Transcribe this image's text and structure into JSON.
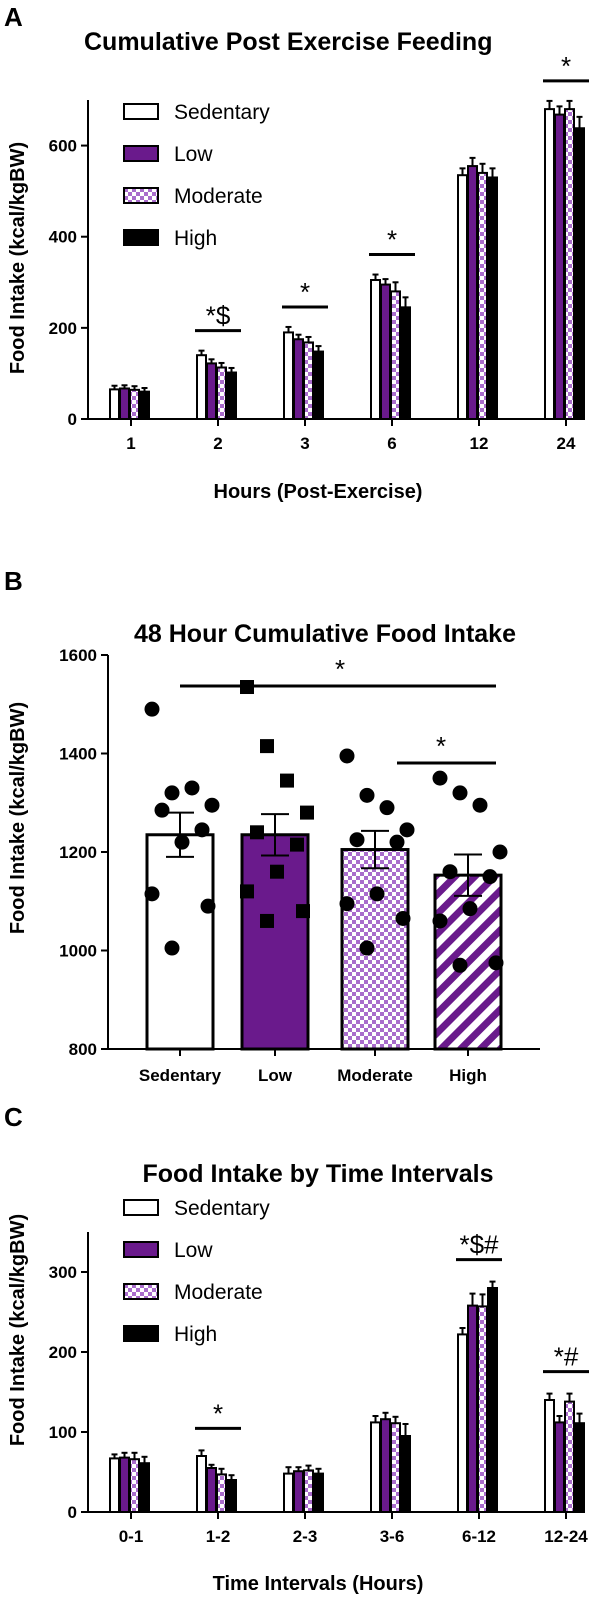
{
  "colors": {
    "sedentary": "#ffffff",
    "low": "#6a1a8c",
    "moderate": "#c8a0dc",
    "high": "#000000",
    "outline": "#000000"
  },
  "chart_data": [
    {
      "panel": "A",
      "type": "bar",
      "title": "Cumulative Post Exercise Feeding",
      "xlabel": "Hours (Post-Exercise)",
      "ylabel": "Food Intake (kcal/kgBW)",
      "ylim": [
        0,
        700
      ],
      "yticks": [
        0,
        200,
        400,
        600
      ],
      "categories": [
        "1",
        "2",
        "3",
        "6",
        "12",
        "24"
      ],
      "legend": [
        "Sedentary",
        "Low",
        "Moderate",
        "High"
      ],
      "legend_position": "top-left",
      "series": [
        {
          "name": "Sedentary",
          "values": [
            65,
            140,
            190,
            305,
            535,
            680
          ],
          "errors": [
            8,
            10,
            12,
            12,
            15,
            18
          ]
        },
        {
          "name": "Low",
          "values": [
            67,
            122,
            175,
            295,
            555,
            668
          ],
          "errors": [
            7,
            9,
            10,
            12,
            18,
            18
          ]
        },
        {
          "name": "Moderate",
          "values": [
            64,
            113,
            168,
            280,
            540,
            680
          ],
          "errors": [
            8,
            10,
            12,
            20,
            20,
            18
          ]
        },
        {
          "name": "High",
          "values": [
            60,
            102,
            148,
            245,
            530,
            638
          ],
          "errors": [
            8,
            10,
            12,
            22,
            20,
            25
          ]
        }
      ],
      "annotations": [
        {
          "category": "2",
          "text": "*$"
        },
        {
          "category": "3",
          "text": "*"
        },
        {
          "category": "6",
          "text": "*"
        },
        {
          "category": "24",
          "text": "*"
        }
      ]
    },
    {
      "panel": "B",
      "type": "bar",
      "title": "48 Hour Cumulative Food Intake",
      "ylabel": "Food Intake (kcal/kgBW)",
      "ylim": [
        800,
        1600
      ],
      "yticks": [
        800,
        1000,
        1200,
        1400,
        1600
      ],
      "categories": [
        "Sedentary",
        "Low",
        "Moderate",
        "High"
      ],
      "values": [
        1235,
        1235,
        1205,
        1153
      ],
      "errors": [
        45,
        42,
        38,
        42
      ],
      "points": [
        [
          1490,
          1320,
          1330,
          1295,
          1285,
          1245,
          1220,
          1115,
          1090,
          1005
        ],
        [
          1535,
          1415,
          1345,
          1280,
          1240,
          1215,
          1160,
          1120,
          1080,
          1060
        ],
        [
          1395,
          1315,
          1290,
          1245,
          1225,
          1220,
          1115,
          1095,
          1065,
          1005
        ],
        [
          1350,
          1320,
          1295,
          1200,
          1160,
          1150,
          1085,
          1060,
          975,
          970
        ]
      ],
      "annotations": [
        {
          "from": "Sedentary",
          "to": "High",
          "text": "*"
        },
        {
          "from": "Moderate",
          "to": "High",
          "text": "*"
        }
      ]
    },
    {
      "panel": "C",
      "type": "bar",
      "title": "Food Intake by Time Intervals",
      "xlabel": "Time Intervals (Hours)",
      "ylabel": "Food Intake (kcal/kgBW)",
      "ylim": [
        0,
        350
      ],
      "yticks": [
        0,
        100,
        200,
        300
      ],
      "categories": [
        "0-1",
        "1-2",
        "2-3",
        "3-6",
        "6-12",
        "12-24"
      ],
      "legend": [
        "Sedentary",
        "Low",
        "Moderate",
        "High"
      ],
      "legend_position": "top-left",
      "series": [
        {
          "name": "Sedentary",
          "values": [
            67,
            70,
            48,
            112,
            222,
            140
          ],
          "errors": [
            5,
            7,
            8,
            8,
            8,
            8
          ]
        },
        {
          "name": "Low",
          "values": [
            68,
            55,
            51,
            116,
            258,
            112
          ],
          "errors": [
            6,
            4,
            5,
            8,
            15,
            8
          ]
        },
        {
          "name": "Moderate",
          "values": [
            66,
            47,
            52,
            111,
            257,
            138
          ],
          "errors": [
            8,
            7,
            6,
            8,
            15,
            10
          ]
        },
        {
          "name": "High",
          "values": [
            61,
            40,
            48,
            95,
            280,
            111
          ],
          "errors": [
            8,
            6,
            6,
            15,
            8,
            12
          ]
        }
      ],
      "annotations": [
        {
          "category": "1-2",
          "text": "*"
        },
        {
          "category": "6-12",
          "text": "*$#"
        },
        {
          "category": "12-24",
          "text": "*#"
        }
      ]
    }
  ]
}
